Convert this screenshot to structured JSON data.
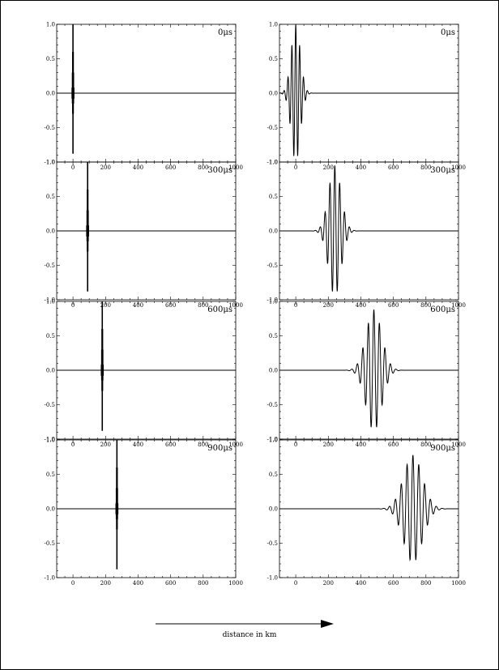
{
  "style": {
    "line_color": "#000000",
    "background": "#ffffff"
  },
  "footer": {
    "caption": "distance in km"
  },
  "chart_data": [
    {
      "panel": "left-1",
      "type": "line",
      "time_label": "0μs",
      "center": 0,
      "mode": "sharp",
      "env_width": 12,
      "xlim": [
        -100,
        1000
      ],
      "ylim": [
        -1.0,
        1.0
      ],
      "x_ticks": [
        "0",
        "200",
        "400",
        "600",
        "800",
        "1000"
      ],
      "y_ticks": [
        "1.0",
        "0.5",
        "0.0",
        "-0.5",
        "-1.0"
      ]
    },
    {
      "panel": "right-1",
      "type": "line",
      "time_label": "0μs",
      "center": 0,
      "mode": "smooth",
      "env_width": 28,
      "wavelength": 24,
      "amp": 1.0,
      "xlim": [
        -100,
        1000
      ],
      "ylim": [
        -1.0,
        1.0
      ],
      "x_ticks": [
        "0",
        "200",
        "400",
        "600",
        "800",
        "1000"
      ],
      "y_ticks": [
        "1.0",
        "0.5",
        "0.0",
        "-0.5",
        "-1.0"
      ]
    },
    {
      "panel": "left-2",
      "type": "line",
      "time_label": "300μs",
      "center": 90,
      "mode": "sharp",
      "env_width": 12,
      "xlim": [
        -100,
        1000
      ],
      "ylim": [
        -1.0,
        1.0
      ],
      "x_ticks": [
        "0",
        "200",
        "400",
        "600",
        "800",
        "1000"
      ],
      "y_ticks": [
        "1.0",
        "0.5",
        "0.0",
        "-0.5",
        "-1.0"
      ]
    },
    {
      "panel": "right-2",
      "type": "line",
      "time_label": "300μs",
      "center": 240,
      "mode": "smooth",
      "env_width": 38,
      "wavelength": 30,
      "amp": 0.95,
      "xlim": [
        -100,
        1000
      ],
      "ylim": [
        -1.0,
        1.0
      ],
      "x_ticks": [
        "0",
        "200",
        "400",
        "600",
        "800",
        "1000"
      ],
      "y_ticks": [
        "1.0",
        "0.5",
        "0.0",
        "-0.5",
        "-1.0"
      ]
    },
    {
      "panel": "left-3",
      "type": "line",
      "time_label": "600μs",
      "center": 180,
      "mode": "sharp",
      "env_width": 12,
      "xlim": [
        -100,
        1000
      ],
      "ylim": [
        -1.0,
        1.0
      ],
      "x_ticks": [
        "0",
        "200",
        "400",
        "600",
        "800",
        "1000"
      ],
      "y_ticks": [
        "1.0",
        "0.5",
        "0.0",
        "-0.5",
        "-1.0"
      ]
    },
    {
      "panel": "right-3",
      "type": "line",
      "time_label": "600μs",
      "center": 480,
      "mode": "smooth",
      "env_width": 48,
      "wavelength": 34,
      "amp": 0.88,
      "xlim": [
        -100,
        1000
      ],
      "ylim": [
        -1.0,
        1.0
      ],
      "x_ticks": [
        "0",
        "200",
        "400",
        "600",
        "800",
        "1000"
      ],
      "y_ticks": [
        "1.0",
        "0.5",
        "0.0",
        "-0.5",
        "-1.0"
      ]
    },
    {
      "panel": "left-4",
      "type": "line",
      "time_label": "900μs",
      "center": 270,
      "mode": "sharp",
      "env_width": 12,
      "xlim": [
        -100,
        1000
      ],
      "ylim": [
        -1.0,
        1.0
      ],
      "x_ticks": [
        "0",
        "200",
        "400",
        "600",
        "800",
        "1000"
      ],
      "y_ticks": [
        "1.0",
        "0.5",
        "0.0",
        "-0.5",
        "-1.0"
      ]
    },
    {
      "panel": "right-4",
      "type": "line",
      "time_label": "900μs",
      "center": 720,
      "mode": "smooth",
      "env_width": 58,
      "wavelength": 36,
      "amp": 0.78,
      "xlim": [
        -100,
        1000
      ],
      "ylim": [
        -1.0,
        1.0
      ],
      "x_ticks": [
        "0",
        "200",
        "400",
        "600",
        "800",
        "1000"
      ],
      "y_ticks": [
        "1.0",
        "0.5",
        "0.0",
        "-0.5",
        "-1.0"
      ]
    }
  ]
}
